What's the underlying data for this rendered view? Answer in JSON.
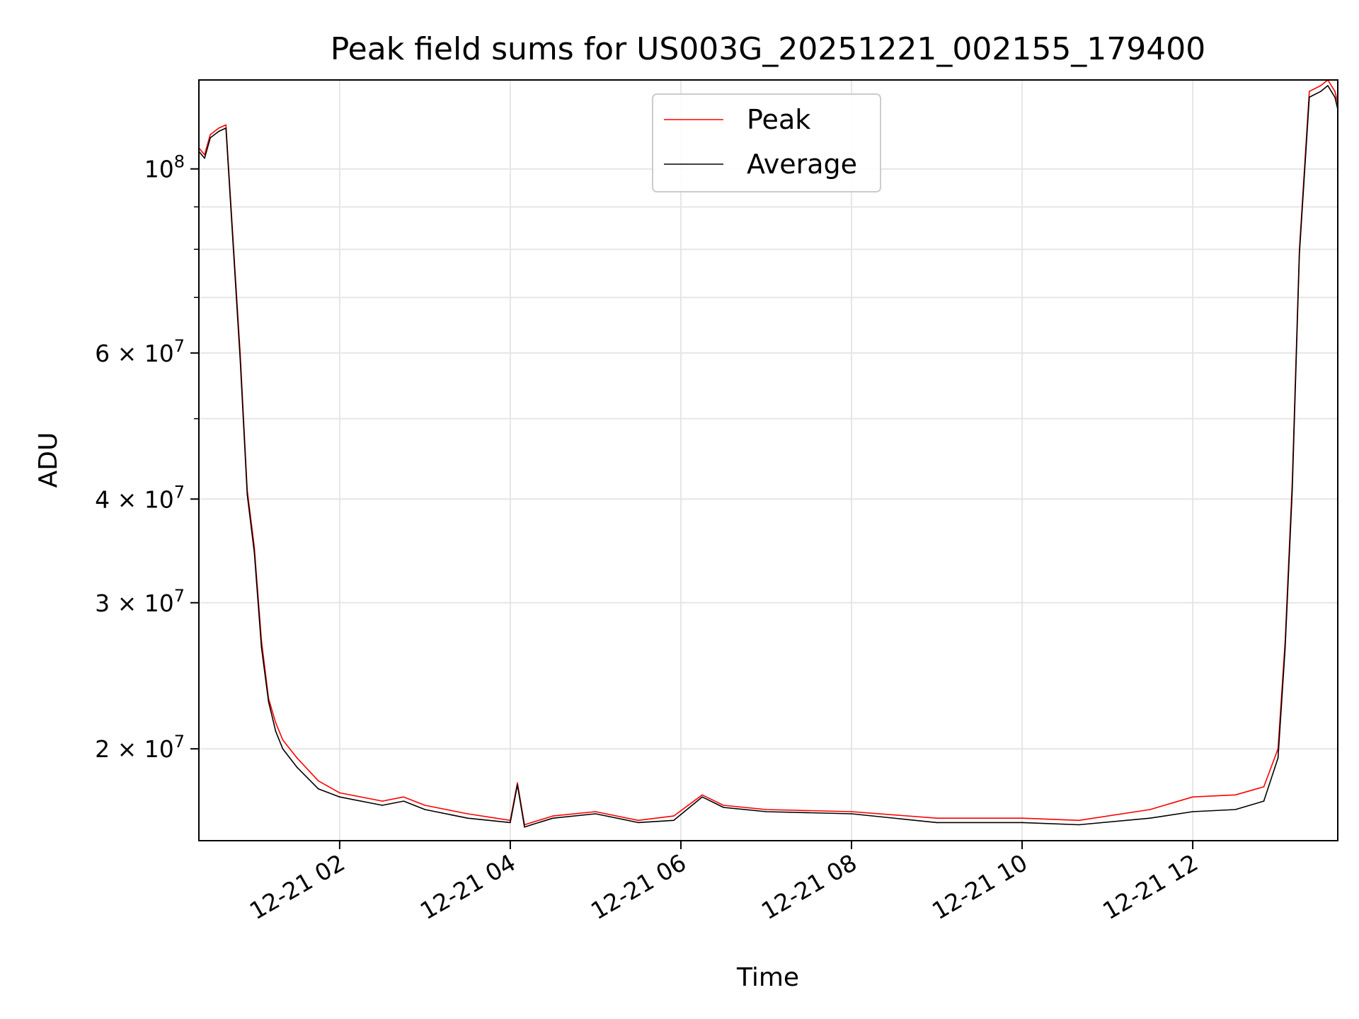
{
  "chart_data": {
    "type": "line",
    "title": "Peak field sums for US003G_20251221_002155_179400",
    "xlabel": "Time",
    "ylabel": "ADU",
    "yscale": "log",
    "grid": true,
    "legend_position": "top-center",
    "xlim": [
      "2025-12-21 00:21",
      "2025-12-21 13:42"
    ],
    "ylim": [
      15500000,
      128000000
    ],
    "x_ticks": [
      "12-21 02",
      "12-21 04",
      "12-21 06",
      "12-21 08",
      "12-21 10",
      "12-21 12"
    ],
    "y_ticks": [
      {
        "value": 20000000,
        "label_base": "2",
        "label_exp": "7"
      },
      {
        "value": 30000000,
        "label_base": "3",
        "label_exp": "7"
      },
      {
        "value": 40000000,
        "label_base": "4",
        "label_exp": "7"
      },
      {
        "value": 60000000,
        "label_base": "6",
        "label_exp": "7"
      },
      {
        "value": 100000000,
        "label_base": "10",
        "label_exp": "8"
      }
    ],
    "y_minor_ticks": [
      50000000,
      70000000,
      80000000,
      90000000
    ],
    "series": [
      {
        "name": "Peak",
        "color": "#ff0000",
        "x": [
          "2025-12-21 00:21",
          "2025-12-21 00:25",
          "2025-12-21 00:29",
          "2025-12-21 00:35",
          "2025-12-21 00:40",
          "2025-12-21 00:50",
          "2025-12-21 00:55",
          "2025-12-21 01:00",
          "2025-12-21 01:05",
          "2025-12-21 01:10",
          "2025-12-21 01:15",
          "2025-12-21 01:20",
          "2025-12-21 01:30",
          "2025-12-21 01:45",
          "2025-12-21 02:00",
          "2025-12-21 02:30",
          "2025-12-21 02:45",
          "2025-12-21 03:00",
          "2025-12-21 03:30",
          "2025-12-21 04:00",
          "2025-12-21 04:05",
          "2025-12-21 04:10",
          "2025-12-21 04:15",
          "2025-12-21 04:30",
          "2025-12-21 05:00",
          "2025-12-21 05:30",
          "2025-12-21 05:55",
          "2025-12-21 06:15",
          "2025-12-21 06:30",
          "2025-12-21 07:00",
          "2025-12-21 08:00",
          "2025-12-21 09:00",
          "2025-12-21 10:00",
          "2025-12-21 10:40",
          "2025-12-21 11:30",
          "2025-12-21 12:00",
          "2025-12-21 12:30",
          "2025-12-21 12:50",
          "2025-12-21 13:00",
          "2025-12-21 13:05",
          "2025-12-21 13:10",
          "2025-12-21 13:15",
          "2025-12-21 13:22",
          "2025-12-21 13:30",
          "2025-12-21 13:35",
          "2025-12-21 13:40",
          "2025-12-21 13:42"
        ],
        "y": [
          106000000,
          104000000,
          110000000,
          112000000,
          113000000,
          60000000,
          41000000,
          35000000,
          27000000,
          23000000,
          21500000,
          20500000,
          19500000,
          18300000,
          17700000,
          17300000,
          17500000,
          17100000,
          16700000,
          16400000,
          18200000,
          16200000,
          16300000,
          16600000,
          16800000,
          16400000,
          16600000,
          17600000,
          17100000,
          16900000,
          16800000,
          16500000,
          16500000,
          16400000,
          16900000,
          17500000,
          17600000,
          18000000,
          20000000,
          27000000,
          42000000,
          80000000,
          124000000,
          126000000,
          128000000,
          124000000,
          120000000
        ]
      },
      {
        "name": "Average",
        "color": "#000000",
        "x": [
          "2025-12-21 00:21",
          "2025-12-21 00:25",
          "2025-12-21 00:29",
          "2025-12-21 00:35",
          "2025-12-21 00:40",
          "2025-12-21 00:50",
          "2025-12-21 00:55",
          "2025-12-21 01:00",
          "2025-12-21 01:05",
          "2025-12-21 01:10",
          "2025-12-21 01:15",
          "2025-12-21 01:20",
          "2025-12-21 01:30",
          "2025-12-21 01:45",
          "2025-12-21 02:00",
          "2025-12-21 02:30",
          "2025-12-21 02:45",
          "2025-12-21 03:00",
          "2025-12-21 03:30",
          "2025-12-21 04:00",
          "2025-12-21 04:05",
          "2025-12-21 04:10",
          "2025-12-21 04:15",
          "2025-12-21 04:30",
          "2025-12-21 05:00",
          "2025-12-21 05:30",
          "2025-12-21 05:55",
          "2025-12-21 06:15",
          "2025-12-21 06:30",
          "2025-12-21 07:00",
          "2025-12-21 08:00",
          "2025-12-21 09:00",
          "2025-12-21 10:00",
          "2025-12-21 10:40",
          "2025-12-21 11:30",
          "2025-12-21 12:00",
          "2025-12-21 12:30",
          "2025-12-21 12:50",
          "2025-12-21 13:00",
          "2025-12-21 13:05",
          "2025-12-21 13:10",
          "2025-12-21 13:15",
          "2025-12-21 13:22",
          "2025-12-21 13:30",
          "2025-12-21 13:35",
          "2025-12-21 13:40",
          "2025-12-21 13:42"
        ],
        "y": [
          105000000,
          103000000,
          109000000,
          111000000,
          112000000,
          59000000,
          40500000,
          34500000,
          26500000,
          22800000,
          21000000,
          20000000,
          19000000,
          17900000,
          17500000,
          17100000,
          17300000,
          16900000,
          16500000,
          16300000,
          18100000,
          16100000,
          16200000,
          16500000,
          16700000,
          16300000,
          16400000,
          17500000,
          17000000,
          16800000,
          16700000,
          16300000,
          16300000,
          16200000,
          16500000,
          16800000,
          16900000,
          17300000,
          19500000,
          26500000,
          41000000,
          79000000,
          122000000,
          124000000,
          126000000,
          122000000,
          118000000
        ]
      }
    ]
  }
}
